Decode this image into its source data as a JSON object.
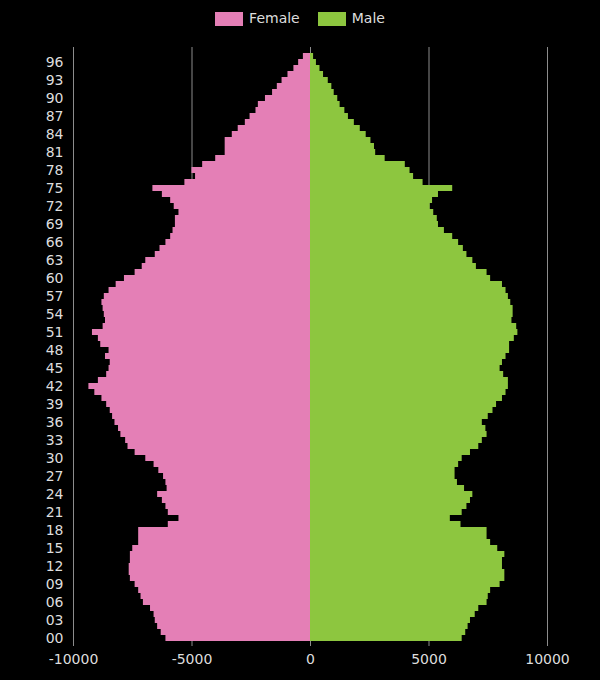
{
  "chart_data": {
    "type": "bar",
    "orientation": "horizontal",
    "legend": "top",
    "grid": true,
    "categories": [
      "00",
      null,
      null,
      "03",
      null,
      null,
      "06",
      null,
      null,
      "09",
      null,
      null,
      "12",
      null,
      null,
      "15",
      null,
      null,
      "18",
      null,
      null,
      "21",
      null,
      null,
      "24",
      null,
      null,
      "27",
      null,
      null,
      "30",
      null,
      null,
      "33",
      null,
      null,
      "36",
      null,
      null,
      "39",
      null,
      null,
      "42",
      null,
      null,
      "45",
      null,
      null,
      "48",
      null,
      null,
      "51",
      null,
      null,
      "54",
      null,
      null,
      "57",
      null,
      null,
      "60",
      null,
      null,
      "63",
      null,
      null,
      "66",
      null,
      null,
      "69",
      null,
      null,
      "72",
      null,
      null,
      "75",
      null,
      null,
      "78",
      null,
      null,
      "81",
      null,
      null,
      "84",
      null,
      null,
      "87",
      null,
      null,
      "90",
      null,
      null,
      "93",
      null,
      null,
      "96",
      null
    ],
    "xlim": [
      -10000,
      10000
    ],
    "xticks": [
      -10000,
      -5000,
      0,
      5000,
      10000
    ],
    "series": [
      {
        "name": "Female",
        "color": "#e47fb6",
        "values": [
          -6100,
          -6300,
          -6450,
          -6550,
          -6600,
          -6750,
          -7050,
          -7150,
          -7250,
          -7400,
          -7600,
          -7650,
          -7650,
          -7600,
          -7600,
          -7500,
          -7250,
          -7250,
          -7250,
          -6000,
          -5550,
          -6000,
          -6100,
          -6250,
          -6450,
          -6050,
          -6100,
          -6200,
          -6400,
          -6600,
          -6950,
          -7400,
          -7700,
          -7800,
          -8000,
          -8100,
          -8250,
          -8350,
          -8450,
          -8600,
          -8800,
          -9100,
          -9350,
          -8950,
          -8600,
          -8500,
          -8450,
          -8650,
          -8500,
          -8850,
          -8950,
          -9200,
          -8750,
          -8650,
          -8700,
          -8750,
          -8800,
          -8700,
          -8500,
          -8200,
          -7850,
          -7400,
          -7100,
          -6950,
          -6550,
          -6350,
          -6100,
          -5900,
          -5800,
          -5700,
          -5700,
          -5550,
          -5750,
          -5900,
          -6250,
          -6650,
          -5300,
          -4850,
          -5000,
          -4550,
          -4000,
          -3600,
          -3600,
          -3600,
          -3300,
          -3050,
          -2750,
          -2550,
          -2300,
          -2200,
          -1900,
          -1600,
          -1400,
          -1200,
          -950,
          -700,
          -500,
          -300
        ]
      },
      {
        "name": "Male",
        "color": "#8dc63f",
        "values": [
          6400,
          6550,
          6650,
          6750,
          6950,
          7100,
          7450,
          7500,
          7600,
          8000,
          8200,
          8200,
          8100,
          8100,
          8200,
          7900,
          7600,
          7450,
          7450,
          6350,
          5900,
          6400,
          6600,
          6750,
          6850,
          6500,
          6200,
          6100,
          6100,
          6250,
          6400,
          6750,
          7100,
          7250,
          7450,
          7400,
          7250,
          7500,
          7700,
          7850,
          8100,
          8250,
          8350,
          8350,
          8150,
          8000,
          8100,
          8250,
          8400,
          8400,
          8600,
          8750,
          8700,
          8500,
          8550,
          8550,
          8450,
          8350,
          8250,
          8100,
          7600,
          7450,
          7000,
          6850,
          6600,
          6450,
          6250,
          6000,
          5650,
          5400,
          5350,
          5200,
          5050,
          5150,
          5400,
          6000,
          4750,
          4350,
          4200,
          4000,
          3150,
          2750,
          2700,
          2550,
          2350,
          2100,
          1850,
          1600,
          1450,
          1250,
          1150,
          1000,
          900,
          750,
          550,
          400,
          250,
          130
        ]
      }
    ]
  }
}
